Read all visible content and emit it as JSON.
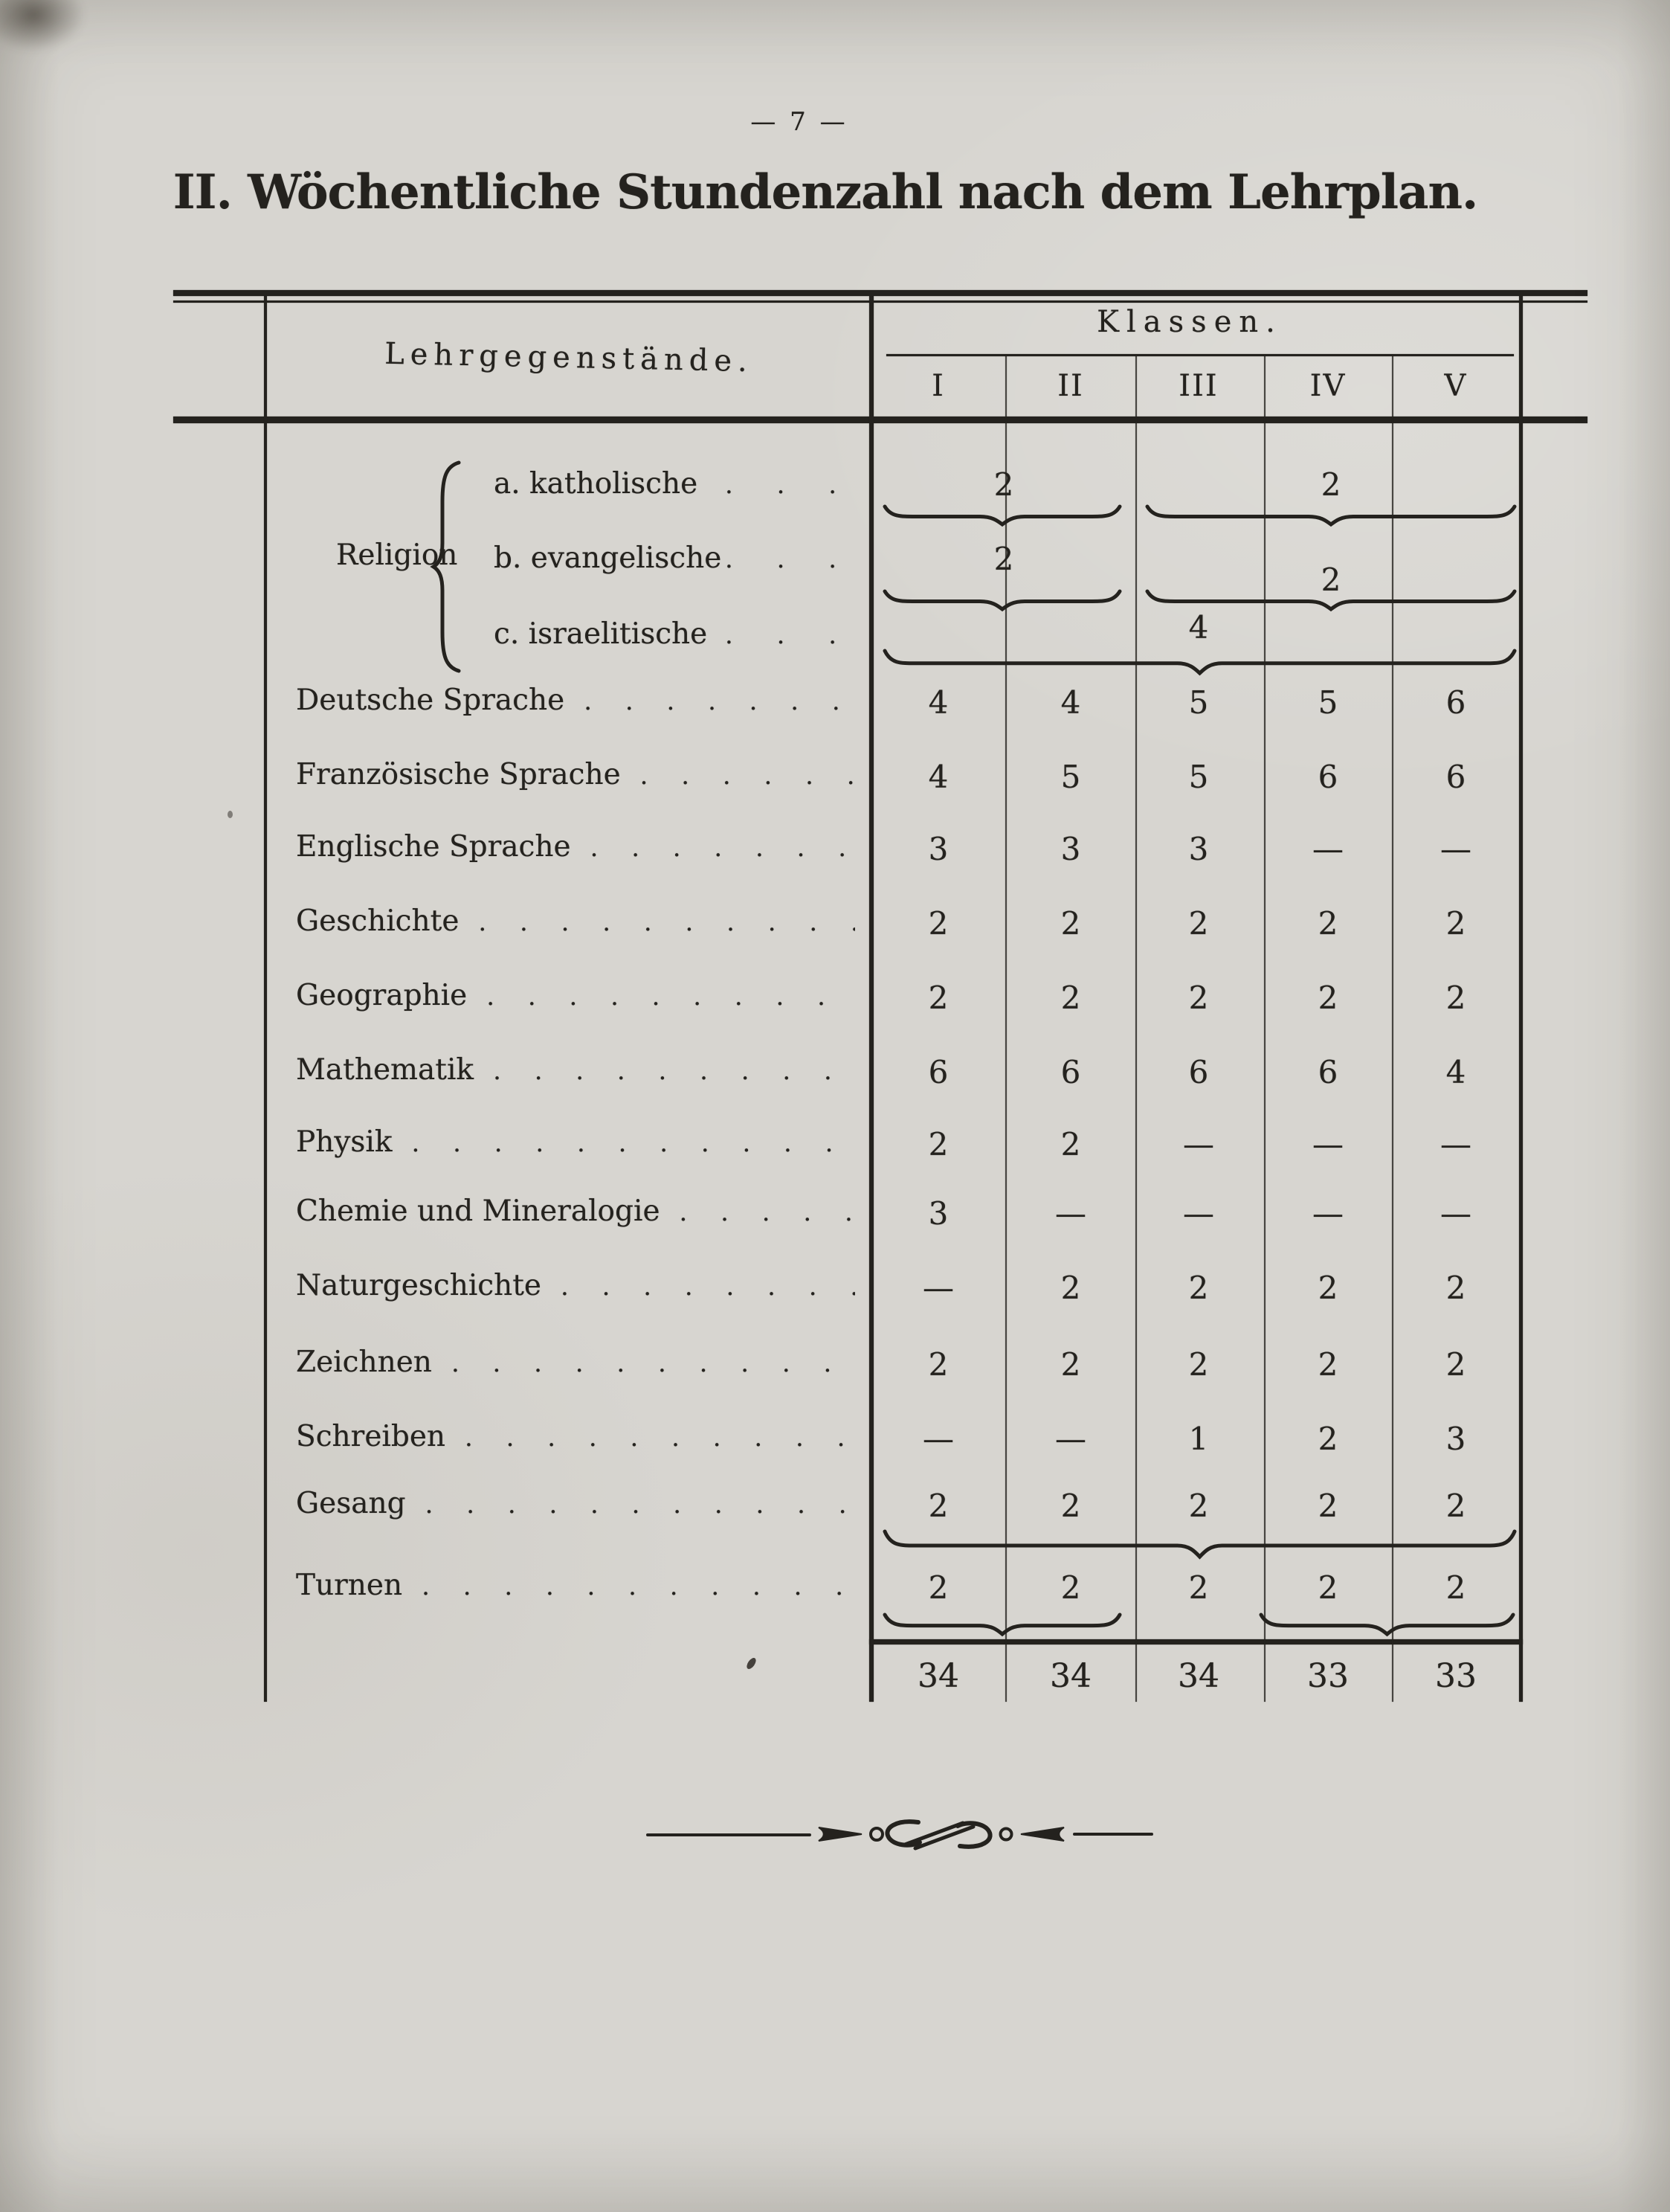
{
  "page_number": "7",
  "page_number_display": "—  7  —",
  "title": "II. Wöchentliche Stundenzahl nach dem Lehrplan.",
  "table": {
    "header": {
      "subjects_label": "Lehrgegenstände.",
      "classes_label": "Klassen.",
      "class_columns": [
        "I",
        "II",
        "III",
        "IV",
        "V"
      ]
    },
    "religion": {
      "group_label": "Religion",
      "rows": [
        {
          "label": "a. katholische",
          "groups": [
            {
              "classes": "I-II",
              "value": "2"
            },
            {
              "classes": "III-V",
              "value": "2"
            }
          ]
        },
        {
          "label": "b. evangelische",
          "groups": [
            {
              "classes": "I-II",
              "value": "2"
            },
            {
              "classes": "III-V",
              "value": "2"
            }
          ]
        },
        {
          "label": "c. israelitische",
          "groups": [
            {
              "classes": "I-V",
              "value": "4"
            }
          ]
        }
      ]
    },
    "rows": [
      {
        "label": "Deutsche Sprache",
        "values": [
          "4",
          "4",
          "5",
          "5",
          "6"
        ]
      },
      {
        "label": "Französische Sprache",
        "values": [
          "4",
          "5",
          "5",
          "6",
          "6"
        ]
      },
      {
        "label": "Englische Sprache",
        "values": [
          "3",
          "3",
          "3",
          "—",
          "—"
        ]
      },
      {
        "label": "Geschichte",
        "values": [
          "2",
          "2",
          "2",
          "2",
          "2"
        ]
      },
      {
        "label": "Geographie",
        "values": [
          "2",
          "2",
          "2",
          "2",
          "2"
        ]
      },
      {
        "label": "Mathematik",
        "values": [
          "6",
          "6",
          "6",
          "6",
          "4"
        ]
      },
      {
        "label": "Physik",
        "values": [
          "2",
          "2",
          "—",
          "—",
          "—"
        ]
      },
      {
        "label": "Chemie und Mineralogie",
        "values": [
          "3",
          "—",
          "—",
          "—",
          "—"
        ]
      },
      {
        "label": "Naturgeschichte",
        "values": [
          "—",
          "2",
          "2",
          "2",
          "2"
        ]
      },
      {
        "label": "Zeichnen",
        "values": [
          "2",
          "2",
          "2",
          "2",
          "2"
        ]
      },
      {
        "label": "Schreiben",
        "values": [
          "—",
          "—",
          "1",
          "2",
          "3"
        ]
      },
      {
        "label": "Gesang",
        "values": [
          "2",
          "2",
          "2",
          "2",
          "2"
        ],
        "brace_below": [
          "I-V"
        ]
      },
      {
        "label": "Turnen",
        "values": [
          "2",
          "2",
          "2",
          "2",
          "2"
        ],
        "brace_below": [
          "I-II",
          "IV-V"
        ]
      }
    ],
    "totals": [
      "34",
      "34",
      "34",
      "33",
      "33"
    ]
  },
  "ink_color": "#24221e",
  "paper_color": "#d7d5d0",
  "misc": {
    "leader_dots": ". . . . . . . . . . . . . . . . . . . . . . . . . . . ."
  }
}
